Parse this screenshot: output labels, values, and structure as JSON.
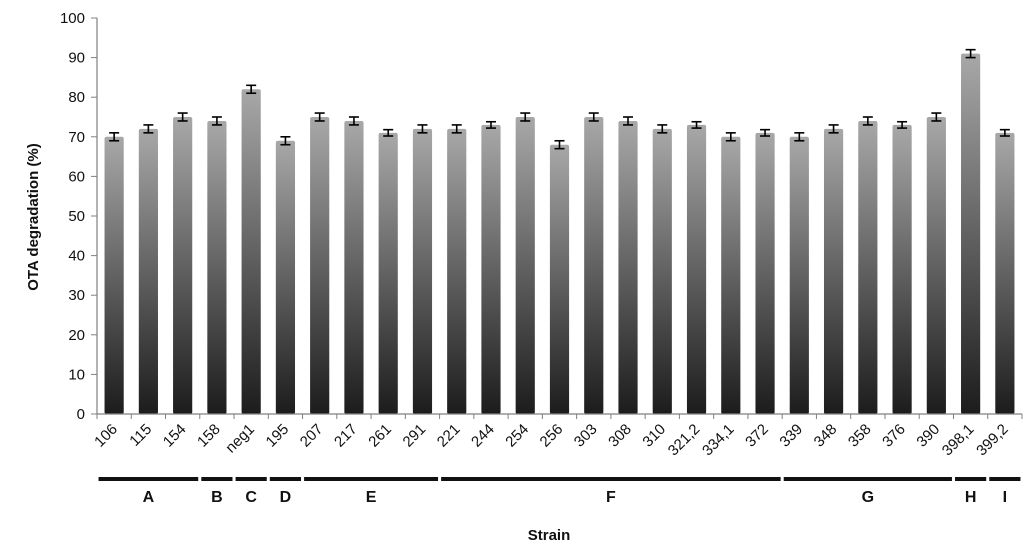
{
  "chart_data": {
    "type": "bar",
    "xlabel": "Strain",
    "ylabel": "OTA degradation (%)",
    "ylim": [
      0,
      100
    ],
    "yticks": [
      0,
      10,
      20,
      30,
      40,
      50,
      60,
      70,
      80,
      90,
      100
    ],
    "grid": false,
    "error_bars": true,
    "categories": [
      "106",
      "115",
      "154",
      "158",
      "neg1",
      "195",
      "207",
      "217",
      "261",
      "291",
      "221",
      "244",
      "254",
      "256",
      "303",
      "308",
      "310",
      "321,2",
      "334,1",
      "372",
      "339",
      "348",
      "358",
      "376",
      "390",
      "398,1",
      "399,2"
    ],
    "values": [
      70,
      72,
      75,
      74,
      82,
      69,
      75,
      74,
      71,
      72,
      72,
      73,
      75,
      68,
      75,
      74,
      72,
      73,
      70,
      71,
      70,
      72,
      74,
      73,
      75,
      91,
      71
    ],
    "errors": [
      1,
      1,
      1,
      1,
      1,
      1,
      1,
      1,
      0.8,
      1,
      1,
      0.8,
      1,
      1,
      1,
      1,
      1,
      0.8,
      1,
      0.8,
      1,
      1,
      1,
      0.8,
      1,
      1,
      0.8
    ],
    "groups": [
      {
        "label": "A",
        "members": [
          "106",
          "115",
          "154"
        ]
      },
      {
        "label": "B",
        "members": [
          "158"
        ]
      },
      {
        "label": "C",
        "members": [
          "neg1"
        ]
      },
      {
        "label": "D",
        "members": [
          "195"
        ]
      },
      {
        "label": "E",
        "members": [
          "207",
          "217",
          "261",
          "291"
        ]
      },
      {
        "label": "F",
        "members": [
          "221",
          "244",
          "254",
          "256",
          "303",
          "308",
          "310",
          "321,2",
          "334,1",
          "372"
        ]
      },
      {
        "label": "G",
        "members": [
          "339",
          "348",
          "358",
          "376",
          "390"
        ]
      },
      {
        "label": "H",
        "members": [
          "398,1"
        ]
      },
      {
        "label": "I",
        "members": [
          "399,2"
        ]
      }
    ],
    "colors": {
      "bar_dark": "#1c1c1c",
      "bar_light": "#a8a8a8",
      "axis": "#808080",
      "text": "#111111"
    }
  }
}
